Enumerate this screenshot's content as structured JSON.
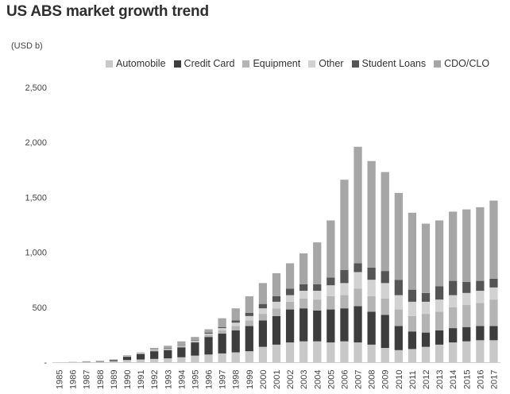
{
  "title": "US ABS market growth trend",
  "unit_label": "(USD b)",
  "colors": {
    "Automobile": "#c8c8c8",
    "Credit Card": "#3d3d3d",
    "Equipment": "#b4b4b4",
    "Other": "#d2d2d2",
    "Student Loans": "#555555",
    "CDO/CLO": "#a6a6a6"
  },
  "chart_data": {
    "type": "bar",
    "stacked": true,
    "title": "US ABS market growth trend",
    "ylabel": "(USD b)",
    "ylim": [
      0,
      2500
    ],
    "yticks": [
      0,
      500,
      1000,
      1500,
      2000,
      2500
    ],
    "ytick_labels": [
      "-",
      "500",
      "1,000",
      "1,500",
      "2,000",
      "2,500"
    ],
    "legend_position": "top",
    "grid": false,
    "categories": [
      "1985",
      "1986",
      "1987",
      "1988",
      "1989",
      "1990",
      "1991",
      "1992",
      "1993",
      "1994",
      "1995",
      "1996",
      "1997",
      "1998",
      "1999",
      "2000",
      "2001",
      "2002",
      "2003",
      "2004",
      "2005",
      "2006",
      "2007",
      "2008",
      "2009",
      "2010",
      "2011",
      "2012",
      "2013",
      "2014",
      "2015",
      "2016",
      "2017"
    ],
    "series": [
      {
        "name": "Automobile",
        "values": [
          0,
          5,
          5,
          5,
          10,
          20,
          25,
          30,
          35,
          45,
          60,
          70,
          80,
          90,
          100,
          140,
          160,
          180,
          190,
          190,
          180,
          190,
          180,
          160,
          130,
          110,
          120,
          140,
          160,
          180,
          190,
          200,
          200
        ]
      },
      {
        "name": "Credit Card",
        "values": [
          0,
          0,
          3,
          5,
          10,
          30,
          50,
          70,
          75,
          90,
          120,
          160,
          180,
          200,
          230,
          240,
          260,
          300,
          300,
          280,
          300,
          300,
          330,
          300,
          300,
          220,
          160,
          130,
          130,
          130,
          130,
          130,
          130
        ]
      },
      {
        "name": "Equipment",
        "values": [
          0,
          0,
          0,
          2,
          5,
          5,
          5,
          10,
          10,
          15,
          10,
          20,
          30,
          40,
          50,
          60,
          70,
          70,
          90,
          100,
          120,
          120,
          160,
          140,
          150,
          150,
          140,
          170,
          170,
          190,
          200,
          210,
          240
        ]
      },
      {
        "name": "Other",
        "values": [
          0,
          0,
          0,
          0,
          2,
          5,
          5,
          5,
          5,
          5,
          5,
          10,
          20,
          30,
          40,
          50,
          60,
          60,
          70,
          80,
          100,
          110,
          150,
          150,
          140,
          130,
          130,
          110,
          110,
          110,
          110,
          110,
          110
        ]
      },
      {
        "name": "Student Loans",
        "values": [
          0,
          0,
          0,
          0,
          0,
          0,
          0,
          3,
          5,
          5,
          5,
          10,
          10,
          20,
          30,
          40,
          50,
          60,
          60,
          60,
          70,
          120,
          80,
          110,
          110,
          140,
          110,
          80,
          120,
          130,
          100,
          90,
          80
        ]
      },
      {
        "name": "CDO/CLO",
        "values": [
          0,
          0,
          0,
          0,
          0,
          5,
          5,
          12,
          20,
          30,
          30,
          30,
          80,
          110,
          150,
          190,
          210,
          230,
          280,
          380,
          520,
          820,
          1060,
          970,
          900,
          790,
          700,
          630,
          600,
          630,
          660,
          670,
          710
        ]
      }
    ]
  }
}
